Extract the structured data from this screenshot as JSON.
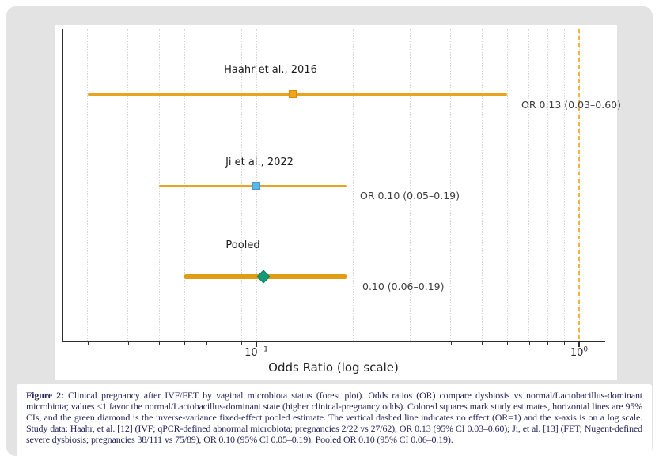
{
  "chart_data": {
    "type": "forest",
    "title": "",
    "xlabel": "Odds Ratio (log scale)",
    "x_scale": "log",
    "xlim": [
      0.026,
      1.2
    ],
    "x_ticks": [
      {
        "value": 0.1,
        "base": "10",
        "exp": "−1"
      },
      {
        "value": 1.0,
        "base": "10",
        "exp": "0"
      }
    ],
    "x_grid_minor": [
      0.03,
      0.04,
      0.05,
      0.06,
      0.07,
      0.08,
      0.09,
      0.2,
      0.3,
      0.4,
      0.5,
      0.6,
      0.7,
      0.8,
      0.9
    ],
    "x_grid_major": [
      0.1,
      1.0
    ],
    "reference_line": {
      "value": 1.0,
      "style": "dashed",
      "meaning": "no effect (OR=1)"
    },
    "rows": [
      {
        "label": "Haahr et al., 2016",
        "or": 0.13,
        "ci_low": 0.03,
        "ci_high": 0.6,
        "marker": "square",
        "marker_color": "#F2A51E",
        "marker_edge": "#D18E07",
        "annotation": "OR 0.13 (0.03–0.60)"
      },
      {
        "label": "Ji et al., 2022",
        "or": 0.1,
        "ci_low": 0.05,
        "ci_high": 0.19,
        "marker": "square",
        "marker_color": "#5FB7E8",
        "marker_edge": "#4298CC",
        "annotation": "OR 0.10 (0.05–0.19)"
      },
      {
        "label": "Pooled",
        "or": 0.105,
        "ci_low": 0.06,
        "ci_high": 0.19,
        "marker": "diamond",
        "marker_color": "#169A76",
        "marker_edge": "#0E7D5F",
        "annotation": "0.10 (0.06–0.19)"
      }
    ],
    "legend_position": "none",
    "grid": "vertical-dotted"
  },
  "caption": {
    "label": "Figure 2:",
    "text": " Clinical pregnancy after IVF/FET by vaginal microbiota status (forest plot). Odds ratios (OR) compare dysbiosis vs normal/Lactobacillus-dominant microbiota; values <1 favor the normal/Lactobacillus-dominant state (higher clinical-pregnancy odds). Colored squares mark study estimates, horizontal lines are 95% CIs, and the green diamond is the inverse-variance fixed-effect pooled estimate. The vertical dashed line indicates no effect (OR=1) and the x-axis is on a log scale. Study data: Haahr, et al. [12] (IVF; qPCR-defined abnormal microbiota; pregnancies 2/22 vs 27/62), OR 0.13 (95% CI 0.03–0.60); Ji, et al. [13] (FET; Nugent-defined severe dysbiosis; pregnancies 38/111 vs 75/89), OR 0.10 (95% CI 0.05–0.19). Pooled OR 0.10 (95% CI 0.06–0.19)."
  },
  "colors": {
    "page_bg": "#ffffff",
    "card_bg": "#e3e3e3",
    "panel_bg": "#ffffff",
    "spine": "#303030",
    "grid": "#d6d6d6",
    "ci_line": "#E9A41F",
    "pooled_line": "#E09D14",
    "ref_dash": "#F3B43C",
    "label_text": "#1d1d1d",
    "ann_text": "#3d3d3d",
    "tick_text": "#2a2a2a",
    "xlabel_text": "#1f1f1f",
    "caption_text": "#26265a"
  }
}
